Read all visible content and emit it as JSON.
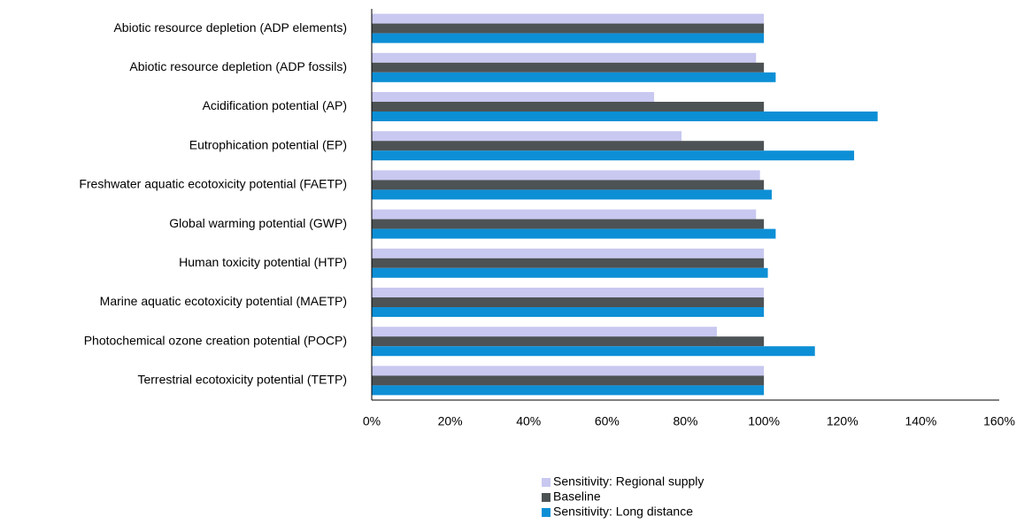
{
  "chart_data": {
    "type": "hbar",
    "categories": [
      "Abiotic resource depletion (ADP elements)",
      "Abiotic resource depletion (ADP fossils)",
      "Acidification potential (AP)",
      "Eutrophication potential (EP)",
      "Freshwater aquatic ecotoxicity potential (FAETP)",
      "Global warming potential (GWP)",
      "Human toxicity potential (HTP)",
      "Marine aquatic ecotoxicity potential (MAETP)",
      "Photochemical ozone creation potential (POCP)",
      "Terrestrial ecotoxicity potential (TETP)"
    ],
    "series": [
      {
        "name": "Sensitivity: Regional supply",
        "color": "#c8c8f0",
        "values": [
          100,
          98,
          72,
          79,
          99,
          98,
          100,
          100,
          88,
          100
        ]
      },
      {
        "name": "Baseline",
        "color": "#4d5254",
        "values": [
          100,
          100,
          100,
          100,
          100,
          100,
          100,
          100,
          100,
          100
        ]
      },
      {
        "name": "Sensitivity: Long distance",
        "color": "#0d8fd6",
        "values": [
          100,
          103,
          129,
          123,
          102,
          103,
          101,
          100,
          113,
          100
        ]
      }
    ],
    "xlim": [
      0,
      160
    ],
    "xticks": [
      {
        "value": 0,
        "label": "0%"
      },
      {
        "value": 20,
        "label": "20%"
      },
      {
        "value": 40,
        "label": "40%"
      },
      {
        "value": 60,
        "label": "60%"
      },
      {
        "value": 80,
        "label": "80%"
      },
      {
        "value": 100,
        "label": "100%"
      },
      {
        "value": 120,
        "label": "120%"
      },
      {
        "value": 140,
        "label": "140%"
      },
      {
        "value": 160,
        "label": "160%"
      }
    ],
    "grid": false,
    "legend": "bottom"
  }
}
